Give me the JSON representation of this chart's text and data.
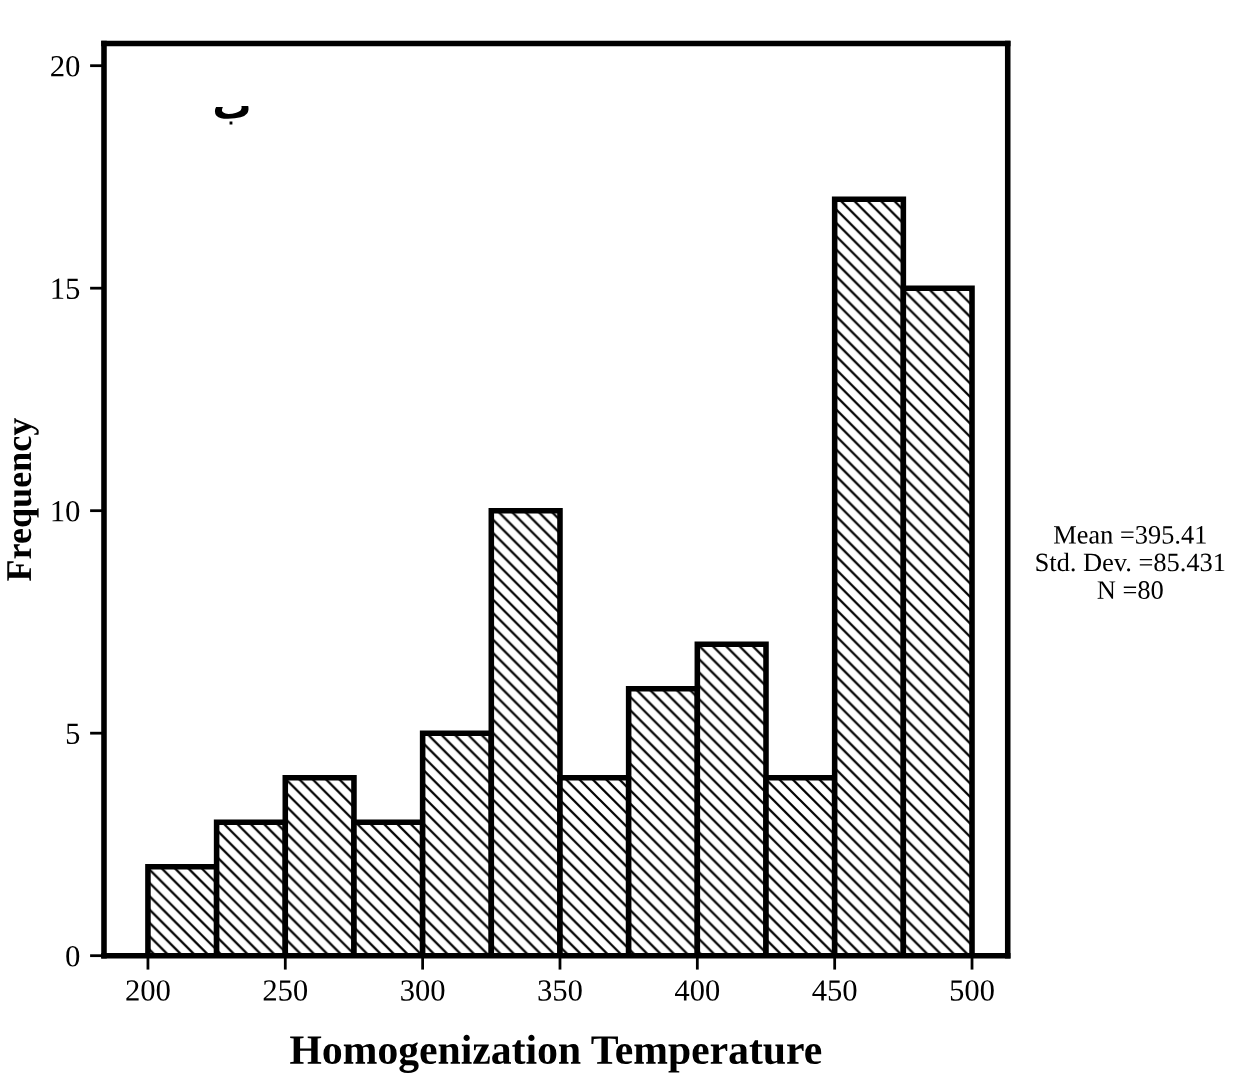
{
  "chart_data": {
    "type": "histogram",
    "xlabel": "Homogenization Temperature",
    "ylabel": "Frequency",
    "bins": [
      200,
      225,
      250,
      275,
      300,
      325,
      350,
      375,
      400,
      425,
      450,
      475,
      500
    ],
    "values": [
      2,
      3,
      4,
      3,
      5,
      10,
      4,
      6,
      7,
      4,
      17,
      15
    ],
    "color": "#000000",
    "xlim": [
      184,
      513
    ],
    "ylim": [
      0,
      20.5
    ],
    "xticks": [
      200,
      250,
      300,
      350,
      400,
      450,
      500
    ],
    "yticks": [
      0,
      5,
      10,
      15,
      20
    ],
    "grid": false,
    "annotations": [
      "ب",
      "Mean =395.41\nStd. Dev. =85.431\nN =80"
    ]
  }
}
